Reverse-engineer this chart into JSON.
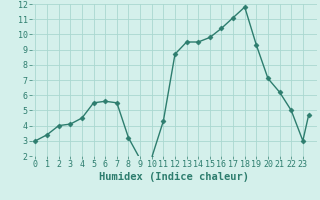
{
  "x": [
    0,
    1,
    2,
    3,
    4,
    5,
    6,
    7,
    8,
    9,
    10,
    11,
    12,
    13,
    14,
    15,
    16,
    17,
    18,
    19,
    20,
    21,
    22,
    23,
    23.5
  ],
  "y": [
    3.0,
    3.4,
    4.0,
    4.1,
    4.5,
    5.5,
    5.6,
    5.5,
    3.2,
    1.8,
    1.9,
    4.3,
    8.7,
    9.5,
    9.5,
    9.8,
    10.4,
    11.1,
    11.8,
    9.3,
    7.1,
    6.2,
    5.0,
    3.0,
    4.7
  ],
  "line_color": "#2d7d6e",
  "marker": "D",
  "markersize": 2.5,
  "linewidth": 1.0,
  "bg_color": "#d4f0eb",
  "grid_color": "#aad8d0",
  "title": "Humidex (Indice chaleur)",
  "ylim": [
    2,
    12
  ],
  "xlim": [
    -0.3,
    24.2
  ],
  "yticks": [
    2,
    3,
    4,
    5,
    6,
    7,
    8,
    9,
    10,
    11,
    12
  ],
  "xticks": [
    0,
    1,
    2,
    3,
    4,
    5,
    6,
    7,
    8,
    9,
    10,
    11,
    12,
    13,
    14,
    15,
    16,
    17,
    18,
    19,
    20,
    21,
    22,
    23
  ],
  "tick_fontsize": 6,
  "xlabel_fontsize": 7.5
}
